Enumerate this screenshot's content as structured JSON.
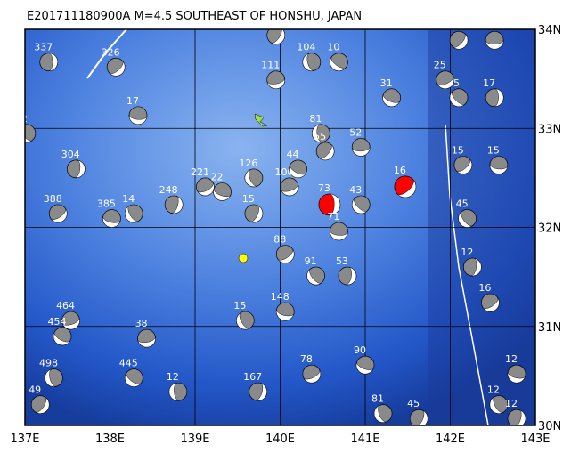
{
  "map": {
    "title": "E201711180900A M=4.5 SOUTHEAST OF HONSHU, JAPAN",
    "lonlim": [
      137,
      143
    ],
    "latlim": [
      30,
      34
    ],
    "lon_ticks": [
      {
        "value": 137,
        "label": "137E"
      },
      {
        "value": 138,
        "label": "138E"
      },
      {
        "value": 139,
        "label": "139E"
      },
      {
        "value": 140,
        "label": "140E"
      },
      {
        "value": 141,
        "label": "141E"
      },
      {
        "value": 142,
        "label": "142E"
      },
      {
        "value": 143,
        "label": "143E"
      }
    ],
    "lat_ticks": [
      {
        "value": 30,
        "label": "30N"
      },
      {
        "value": 31,
        "label": "31N"
      },
      {
        "value": 32,
        "label": "32N"
      },
      {
        "value": 33,
        "label": "33N"
      },
      {
        "value": 34,
        "label": "34N"
      }
    ],
    "grid": true,
    "ball_color": "#8a8a8a",
    "events": [
      {
        "lon": 137.28,
        "lat": 33.67,
        "depth": 337
      },
      {
        "lon": 138.07,
        "lat": 33.62,
        "depth": 326
      },
      {
        "lon": 138.33,
        "lat": 33.13,
        "depth": 17
      },
      {
        "lon": 137.02,
        "lat": 32.95,
        "depth": 12
      },
      {
        "lon": 137.6,
        "lat": 32.59,
        "depth": 304
      },
      {
        "lon": 137.39,
        "lat": 32.14,
        "depth": 388
      },
      {
        "lon": 138.02,
        "lat": 32.09,
        "depth": 385
      },
      {
        "lon": 138.28,
        "lat": 32.14,
        "depth": 14
      },
      {
        "lon": 138.75,
        "lat": 32.23,
        "depth": 248
      },
      {
        "lon": 139.12,
        "lat": 32.41,
        "depth": 221
      },
      {
        "lon": 139.32,
        "lat": 32.36,
        "depth": 22
      },
      {
        "lon": 139.69,
        "lat": 32.5,
        "depth": 126
      },
      {
        "lon": 139.69,
        "lat": 32.14,
        "depth": 15
      },
      {
        "lon": 140.11,
        "lat": 32.41,
        "depth": 100
      },
      {
        "lon": 140.21,
        "lat": 32.59,
        "depth": 44
      },
      {
        "lon": 140.37,
        "lat": 33.67,
        "depth": 104
      },
      {
        "lon": 139.95,
        "lat": 33.94,
        "depth": 31
      },
      {
        "lon": 139.95,
        "lat": 33.49,
        "depth": 111
      },
      {
        "lon": 140.69,
        "lat": 33.67,
        "depth": 10
      },
      {
        "lon": 140.48,
        "lat": 32.95,
        "depth": 81
      },
      {
        "lon": 140.53,
        "lat": 32.77,
        "depth": 55
      },
      {
        "lon": 140.95,
        "lat": 32.81,
        "depth": 52
      },
      {
        "lon": 140.95,
        "lat": 32.23,
        "depth": 43
      },
      {
        "lon": 140.58,
        "lat": 32.23,
        "depth": 73,
        "color": "#ff0000"
      },
      {
        "lon": 141.47,
        "lat": 32.41,
        "depth": 16,
        "color": "#ff0000"
      },
      {
        "lon": 140.69,
        "lat": 31.96,
        "depth": 71
      },
      {
        "lon": 140.42,
        "lat": 31.51,
        "depth": 91
      },
      {
        "lon": 140.79,
        "lat": 31.51,
        "depth": 53
      },
      {
        "lon": 140.06,
        "lat": 31.73,
        "depth": 88
      },
      {
        "lon": 140.06,
        "lat": 31.15,
        "depth": 148
      },
      {
        "lon": 139.59,
        "lat": 31.06,
        "depth": 15
      },
      {
        "lon": 139.74,
        "lat": 30.34,
        "depth": 167
      },
      {
        "lon": 140.37,
        "lat": 30.52,
        "depth": 78
      },
      {
        "lon": 141.0,
        "lat": 30.61,
        "depth": 90
      },
      {
        "lon": 141.21,
        "lat": 30.12,
        "depth": 81
      },
      {
        "lon": 141.63,
        "lat": 30.07,
        "depth": 45
      },
      {
        "lon": 137.54,
        "lat": 31.06,
        "depth": 464
      },
      {
        "lon": 137.44,
        "lat": 30.9,
        "depth": 454
      },
      {
        "lon": 137.34,
        "lat": 30.48,
        "depth": 498
      },
      {
        "lon": 137.18,
        "lat": 30.21,
        "depth": 49
      },
      {
        "lon": 138.43,
        "lat": 30.88,
        "depth": 38
      },
      {
        "lon": 138.28,
        "lat": 30.48,
        "depth": 445
      },
      {
        "lon": 138.8,
        "lat": 30.34,
        "depth": 12
      },
      {
        "lon": 142.1,
        "lat": 33.89,
        "depth": 15
      },
      {
        "lon": 142.52,
        "lat": 33.89,
        "depth": 16
      },
      {
        "lon": 142.1,
        "lat": 33.31,
        "depth": 15
      },
      {
        "lon": 142.52,
        "lat": 33.31,
        "depth": 17
      },
      {
        "lon": 142.15,
        "lat": 32.63,
        "depth": 15
      },
      {
        "lon": 142.57,
        "lat": 32.63,
        "depth": 15
      },
      {
        "lon": 142.2,
        "lat": 32.09,
        "depth": 45
      },
      {
        "lon": 142.26,
        "lat": 31.6,
        "depth": 12
      },
      {
        "lon": 142.47,
        "lat": 31.24,
        "depth": 16
      },
      {
        "lon": 142.78,
        "lat": 30.52,
        "depth": 12
      },
      {
        "lon": 142.57,
        "lat": 30.21,
        "depth": 12
      },
      {
        "lon": 142.78,
        "lat": 30.07,
        "depth": 12
      },
      {
        "lon": 141.94,
        "lat": 33.49,
        "depth": 25
      },
      {
        "lon": 141.31,
        "lat": 33.31,
        "depth": 31
      }
    ]
  }
}
